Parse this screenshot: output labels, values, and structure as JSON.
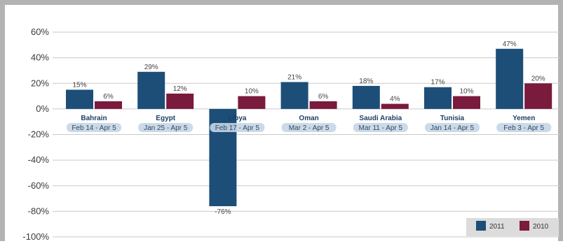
{
  "chart_data": {
    "type": "bar",
    "title": "",
    "xlabel": "",
    "ylabel": "",
    "ylim": [
      -100,
      60
    ],
    "yticks": [
      60,
      40,
      20,
      0,
      -20,
      -40,
      -60,
      -80,
      -100
    ],
    "ytick_labels": [
      "60%",
      "40%",
      "20%",
      "0%",
      "-20%",
      "-40%",
      "-60%",
      "-80%",
      "-100%"
    ],
    "categories": [
      "Bahrain",
      "Egypt",
      "Libya",
      "Oman",
      "Saudi Arabia",
      "Tunisia",
      "Yemen"
    ],
    "date_ranges": [
      "Feb 14 - Apr 5",
      "Jan 25 - Apr 5",
      "Feb 17 - Apr 5",
      "Mar 2 - Apr 5",
      "Mar 11 - Apr 5",
      "Jan 14 - Apr 5",
      "Feb 3 - Apr 5"
    ],
    "series": [
      {
        "name": "2011",
        "color": "#1c4e78",
        "values": [
          15,
          29,
          -76,
          21,
          18,
          17,
          47
        ],
        "labels": [
          "15%",
          "29%",
          "-76%",
          "21%",
          "18%",
          "17%",
          "47%"
        ]
      },
      {
        "name": "2010",
        "color": "#7a1a3c",
        "values": [
          6,
          12,
          10,
          6,
          4,
          10,
          20
        ],
        "labels": [
          "6%",
          "12%",
          "10%",
          "6%",
          "4%",
          "10%",
          "20%"
        ]
      }
    ],
    "grid": true,
    "legend_position": "bottom-right"
  }
}
